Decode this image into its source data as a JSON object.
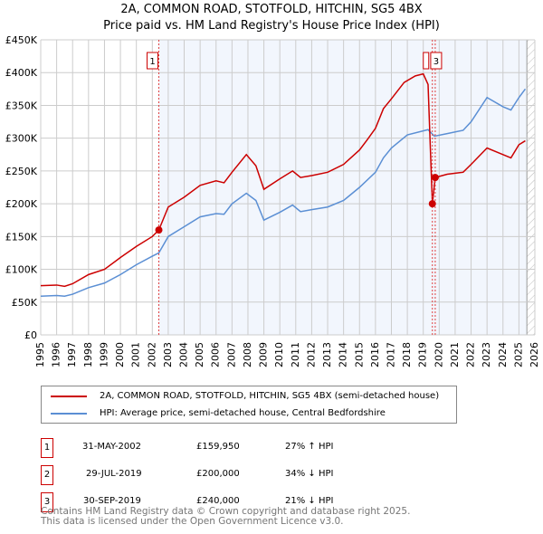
{
  "chart_data": {
    "type": "line",
    "title": "2A, COMMON ROAD, STOTFOLD, HITCHIN, SG5 4BX",
    "subtitle": "Price paid vs. HM Land Registry's House Price Index (HPI)",
    "xlim": [
      1995,
      2026
    ],
    "ylim": [
      0,
      450000
    ],
    "y_ticks": [
      0,
      50000,
      100000,
      150000,
      200000,
      250000,
      300000,
      350000,
      400000,
      450000
    ],
    "y_tick_labels": [
      "£0",
      "£50K",
      "£100K",
      "£150K",
      "£200K",
      "£250K",
      "£300K",
      "£350K",
      "£400K",
      "£450K"
    ],
    "x_ticks": [
      1995,
      1996,
      1997,
      1998,
      1999,
      2000,
      2001,
      2002,
      2003,
      2004,
      2005,
      2006,
      2007,
      2008,
      2009,
      2010,
      2011,
      2012,
      2013,
      2014,
      2015,
      2016,
      2017,
      2018,
      2019,
      2020,
      2021,
      2022,
      2023,
      2024,
      2025,
      2026
    ],
    "grid": true,
    "series": [
      {
        "name": "2A, COMMON ROAD, STOTFOLD, HITCHIN, SG5 4BX (semi-detached house)",
        "color": "#cc0000",
        "x": [
          1995,
          1996,
          1996.5,
          1997,
          1998,
          1999,
          2000,
          2001,
          2002,
          2002.41,
          2003,
          2004,
          2005,
          2006,
          2006.5,
          2007,
          2007.9,
          2008.5,
          2009,
          2010,
          2010.8,
          2011.3,
          2012,
          2013,
          2014,
          2015,
          2015.5,
          2016,
          2016.5,
          2017,
          2017.8,
          2018.5,
          2019,
          2019.3,
          2019.57,
          2019.75,
          2020.5,
          2021.5,
          2022,
          2023,
          2024,
          2024.5,
          2025,
          2025.4
        ],
        "y": [
          75000,
          76000,
          74000,
          78000,
          92000,
          100000,
          118000,
          135000,
          150000,
          159950,
          195000,
          210000,
          228000,
          235000,
          232000,
          248000,
          275000,
          258000,
          222000,
          238000,
          250000,
          240000,
          243000,
          248000,
          260000,
          282000,
          298000,
          315000,
          345000,
          360000,
          385000,
          395000,
          398000,
          382000,
          200000,
          240000,
          245000,
          248000,
          260000,
          285000,
          275000,
          270000,
          290000,
          296000
        ]
      },
      {
        "name": "HPI: Average price, semi-detached house, Central Bedfordshire",
        "color": "#5b8fd4",
        "x": [
          1995,
          1996,
          1996.5,
          1997,
          1998,
          1999,
          2000,
          2001,
          2002,
          2002.41,
          2003,
          2004,
          2005,
          2006,
          2006.5,
          2007,
          2007.9,
          2008.5,
          2009,
          2010,
          2010.8,
          2011.3,
          2012,
          2013,
          2014,
          2015,
          2016,
          2016.5,
          2017,
          2018,
          2019.3,
          2019.7,
          2020.5,
          2021.5,
          2022,
          2023,
          2024,
          2024.5,
          2025,
          2025.4
        ],
        "y": [
          59000,
          60000,
          59000,
          62000,
          72000,
          79000,
          92000,
          107000,
          120000,
          125000,
          150000,
          165000,
          180000,
          185000,
          184000,
          200000,
          216000,
          205000,
          175000,
          187000,
          198000,
          188000,
          191000,
          195000,
          205000,
          225000,
          248000,
          270000,
          285000,
          305000,
          313000,
          303000,
          307000,
          312000,
          325000,
          362000,
          348000,
          343000,
          362000,
          375000
        ]
      }
    ],
    "sales": [
      {
        "label": "1",
        "x": 2002.41,
        "date": "31-MAY-2002",
        "price": "£159,950",
        "value": 159950,
        "hpi": "27% ↑ HPI"
      },
      {
        "label": "2",
        "x": 2019.57,
        "date": "29-JUL-2019",
        "price": "£200,000",
        "value": 200000,
        "hpi": "34% ↓ HPI"
      },
      {
        "label": "3",
        "x": 2019.75,
        "date": "30-SEP-2019",
        "price": "£240,000",
        "value": 240000,
        "hpi": "21% ↓ HPI"
      }
    ],
    "shaded_from": 2002.41,
    "forecast_from": 2025.5
  },
  "footer": {
    "line1": "Contains HM Land Registry data © Crown copyright and database right 2025.",
    "line2": "This data is licensed under the Open Government Licence v3.0."
  }
}
